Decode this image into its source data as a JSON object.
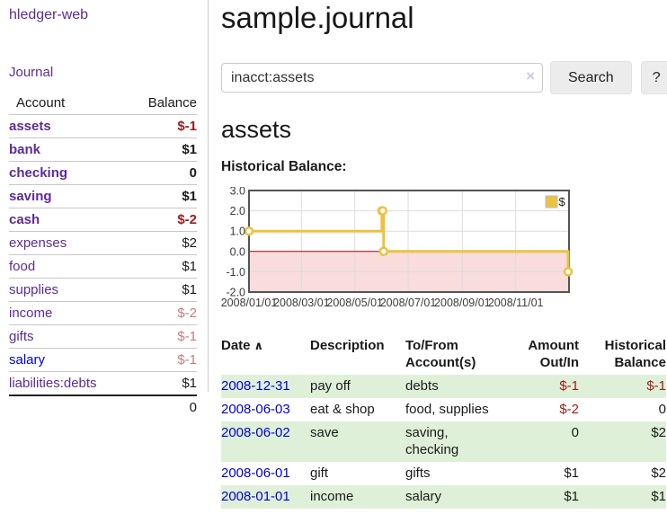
{
  "app": {
    "brand": "hledger-web"
  },
  "sidebar": {
    "journal_label": "Journal",
    "table": {
      "headers": [
        "Account",
        "Balance"
      ],
      "rows": [
        {
          "account": "assets",
          "balance": "$-1",
          "indent": 1,
          "bold": true,
          "balance_tone": "neg"
        },
        {
          "account": "bank",
          "balance": "$1",
          "indent": 2,
          "bold": true,
          "balance_tone": "normal"
        },
        {
          "account": "checking",
          "balance": "0",
          "indent": 3,
          "bold": true,
          "balance_tone": "normal"
        },
        {
          "account": "saving",
          "balance": "$1",
          "indent": 3,
          "bold": true,
          "balance_tone": "normal"
        },
        {
          "account": "cash",
          "balance": "$-2",
          "indent": 2,
          "bold": true,
          "balance_tone": "neg"
        },
        {
          "account": "expenses",
          "balance": "$2",
          "indent": 1,
          "bold": false,
          "balance_tone": "normal"
        },
        {
          "account": "food",
          "balance": "$1",
          "indent": 2,
          "bold": false,
          "balance_tone": "normal"
        },
        {
          "account": "supplies",
          "balance": "$1",
          "indent": 2,
          "bold": false,
          "balance_tone": "normal"
        },
        {
          "account": "income",
          "balance": "$-2",
          "indent": 1,
          "bold": false,
          "balance_tone": "neg-light"
        },
        {
          "account": "gifts",
          "balance": "$-1",
          "indent": 2,
          "bold": false,
          "balance_tone": "neg-light"
        },
        {
          "account": "salary",
          "balance": "$-1",
          "indent": 2,
          "bold": false,
          "balance_tone": "neg-light",
          "unvisited": true
        },
        {
          "account": "liabilities:debts",
          "balance": "$1",
          "indent": 1,
          "bold": false,
          "balance_tone": "normal"
        }
      ],
      "total": "0"
    }
  },
  "main": {
    "title": "sample.journal",
    "search": {
      "value": "inacct:assets",
      "clear_icon": "×",
      "submit_label": "Search",
      "help_label": "?"
    },
    "account_heading": "assets",
    "chart_title": "Historical Balance:"
  },
  "chart_data": {
    "type": "line",
    "step": true,
    "title": "Historical Balance:",
    "series": [
      {
        "name": "$",
        "color": "#edc240",
        "points": [
          [
            "2008-01-01",
            1
          ],
          [
            "2008-06-01",
            2
          ],
          [
            "2008-06-02",
            2
          ],
          [
            "2008-06-03",
            0
          ],
          [
            "2008-12-31",
            -1
          ]
        ]
      }
    ],
    "point_days": [
      0,
      152,
      153,
      154,
      365
    ],
    "x_domain": [
      0,
      366
    ],
    "xtick_labels": [
      "2008/01/01",
      "2008/03/01",
      "2008/05/01",
      "2008/07/01",
      "2008/09/01",
      "2008/11/01"
    ],
    "xtick_days": [
      0,
      60,
      121,
      182,
      244,
      305
    ],
    "ylim": [
      -2,
      3
    ],
    "ytick_values": [
      3,
      2,
      1,
      0,
      -1,
      -2
    ],
    "ytick_labels": [
      "3.0",
      "2.0",
      "1.0",
      "0.0",
      "-1.0",
      "-2.0"
    ],
    "legend": {
      "label": "$",
      "position": "top-right"
    },
    "grid": true,
    "colors": {
      "negative_region": "#f9dcdc",
      "zero_line": "#a40000",
      "grid": "#dcdcdc",
      "border": "#545454",
      "tick_text": "#3c3c3c"
    }
  },
  "register": {
    "sort_icon": "∧",
    "headers": [
      "Date",
      "Description",
      "To/From Account(s)",
      "Amount Out/In",
      "Historical Balance"
    ],
    "rows": [
      {
        "date": "2008-12-31",
        "description": "pay off",
        "accounts": "debts",
        "amount": "$-1",
        "balance": "$-1",
        "amount_neg": true,
        "balance_neg": true
      },
      {
        "date": "2008-06-03",
        "description": "eat & shop",
        "accounts": "food, supplies",
        "amount": "$-2",
        "balance": "0",
        "amount_neg": true,
        "balance_neg": false
      },
      {
        "date": "2008-06-02",
        "description": "save",
        "accounts": "saving, checking",
        "amount": "0",
        "balance": "$2",
        "amount_neg": false,
        "balance_neg": false
      },
      {
        "date": "2008-06-01",
        "description": "gift",
        "accounts": "gifts",
        "amount": "$1",
        "balance": "$2",
        "amount_neg": false,
        "balance_neg": false
      },
      {
        "date": "2008-01-01",
        "description": "income",
        "accounts": "salary",
        "amount": "$1",
        "balance": "$1",
        "amount_neg": false,
        "balance_neg": false
      }
    ]
  },
  "colors": {
    "link_purple": "#5e2b97",
    "link_blue": "#0000d6",
    "negative_dark": "#9c1a1a",
    "negative_light": "#c27f7f",
    "row_stripe_green": "#dff0d8",
    "series_gold": "#edc240"
  }
}
